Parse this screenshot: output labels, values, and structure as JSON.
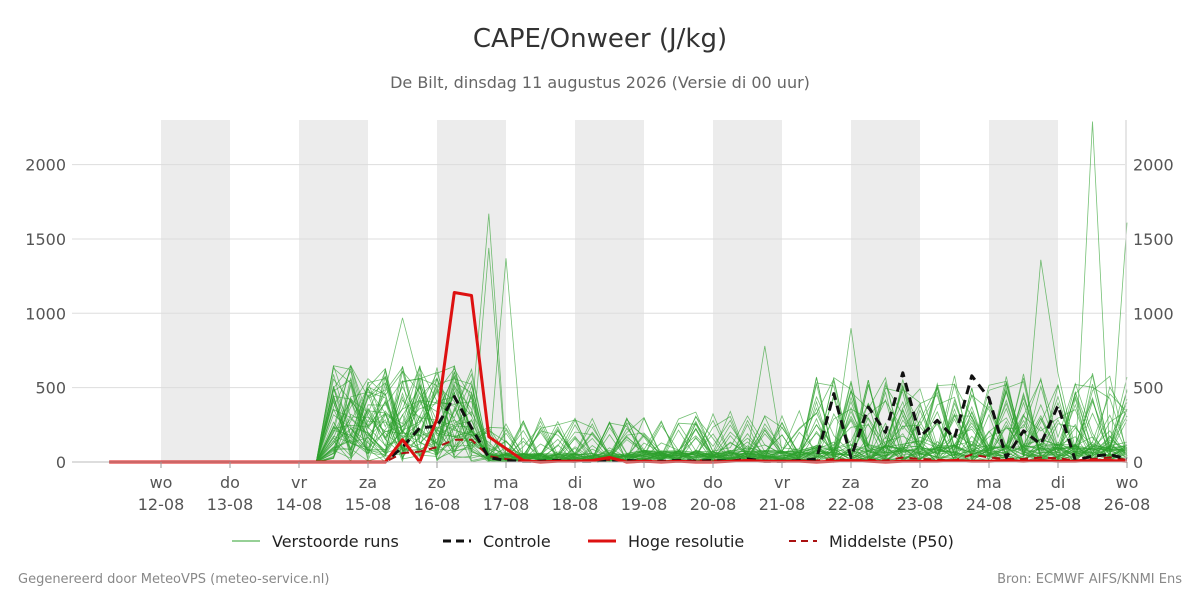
{
  "title": "CAPE/Onweer (J/kg)",
  "subtitle": "De Bilt, dinsdag 11 augustus 2026 (Versie di 00 uur)",
  "footer_left": "Gegenereerd door MeteoVPS (meteo-service.nl)",
  "footer_right": "Bron: ECMWF AIFS/KNMI Ens",
  "colors": {
    "ensemble": "#2ca02c",
    "control": "#111111",
    "hires": "#dd1111",
    "median": "#aa1111",
    "weekend_band": "#ececec",
    "grid": "#dddddd"
  },
  "chart_data": {
    "type": "line",
    "ylim": [
      0,
      2300
    ],
    "y_ticks": [
      "0",
      "500",
      "1000",
      "1500",
      "2000"
    ],
    "x_ticks": [
      {
        "day": "wo",
        "date": "12-08"
      },
      {
        "day": "do",
        "date": "13-08"
      },
      {
        "day": "vr",
        "date": "14-08"
      },
      {
        "day": "za",
        "date": "15-08"
      },
      {
        "day": "zo",
        "date": "16-08"
      },
      {
        "day": "ma",
        "date": "17-08"
      },
      {
        "day": "di",
        "date": "18-08"
      },
      {
        "day": "wo",
        "date": "19-08"
      },
      {
        "day": "do",
        "date": "20-08"
      },
      {
        "day": "vr",
        "date": "21-08"
      },
      {
        "day": "za",
        "date": "22-08"
      },
      {
        "day": "zo",
        "date": "23-08"
      },
      {
        "day": "ma",
        "date": "24-08"
      },
      {
        "day": "di",
        "date": "25-08"
      },
      {
        "day": "wo",
        "date": "26-08"
      }
    ],
    "x_start_day": -0.75,
    "x_end_day": 14,
    "shaded_days": [
      0,
      2,
      4,
      6,
      8,
      10,
      12
    ],
    "legend": [
      "Verstoorde runs",
      "Controle",
      "Hoge resolutie",
      "Middelste (P50)"
    ],
    "series": [
      {
        "name": "Hoge resolutie",
        "x": [
          -0.75,
          -0.5,
          -0.25,
          0,
          0.25,
          0.5,
          0.75,
          1,
          1.25,
          1.5,
          1.75,
          2,
          2.25,
          2.5,
          2.75,
          3,
          3.25,
          3.5,
          3.75,
          4,
          4.25,
          4.5,
          4.75,
          5,
          5.25,
          5.5,
          5.75,
          6,
          6.25,
          6.5,
          6.75,
          7,
          7.25,
          7.5,
          7.75,
          8,
          8.25,
          8.5,
          8.75,
          9,
          9.25,
          9.5,
          9.75,
          10,
          10.25,
          10.5,
          10.75,
          11,
          11.25,
          11.5,
          11.75,
          12,
          12.25,
          12.5,
          12.75,
          13,
          13.25,
          13.5,
          13.75,
          14
        ],
        "values": [
          0,
          0,
          0,
          0,
          0,
          0,
          0,
          0,
          0,
          0,
          0,
          0,
          0,
          0,
          0,
          0,
          0,
          150,
          0,
          290,
          1140,
          1120,
          170,
          90,
          10,
          0,
          5,
          5,
          10,
          30,
          0,
          5,
          0,
          5,
          0,
          0,
          5,
          10,
          5,
          5,
          5,
          0,
          5,
          10,
          5,
          0,
          5,
          5,
          5,
          10,
          5,
          5,
          10,
          5,
          10,
          5,
          5,
          10,
          10,
          5
        ]
      },
      {
        "name": "Controle",
        "x": [
          -0.75,
          -0.5,
          -0.25,
          0,
          0.25,
          0.5,
          0.75,
          1,
          1.25,
          1.5,
          1.75,
          2,
          2.25,
          2.5,
          2.75,
          3,
          3.25,
          3.5,
          3.75,
          4,
          4.25,
          4.5,
          4.75,
          5,
          5.25,
          5.5,
          5.75,
          6,
          6.25,
          6.5,
          6.75,
          7,
          7.25,
          7.5,
          7.75,
          8,
          8.25,
          8.5,
          8.75,
          9,
          9.25,
          9.5,
          9.75,
          10,
          10.25,
          10.5,
          10.75,
          11,
          11.25,
          11.5,
          11.75,
          12,
          12.25,
          12.5,
          12.75,
          13,
          13.25,
          13.5,
          13.75,
          14
        ],
        "values": [
          0,
          0,
          0,
          0,
          0,
          0,
          0,
          0,
          0,
          0,
          0,
          0,
          0,
          0,
          0,
          0,
          0,
          100,
          230,
          240,
          440,
          230,
          30,
          10,
          5,
          5,
          10,
          5,
          5,
          10,
          10,
          5,
          5,
          10,
          5,
          10,
          5,
          20,
          5,
          5,
          10,
          20,
          460,
          30,
          370,
          200,
          600,
          170,
          280,
          160,
          580,
          430,
          30,
          210,
          120,
          380,
          10,
          40,
          50,
          20
        ]
      },
      {
        "name": "Middelste (P50)",
        "x": [
          -0.75,
          -0.5,
          -0.25,
          0,
          0.25,
          0.5,
          0.75,
          1,
          1.25,
          1.5,
          1.75,
          2,
          2.25,
          2.5,
          2.75,
          3,
          3.25,
          3.5,
          3.75,
          4,
          4.25,
          4.5,
          4.75,
          5,
          5.25,
          5.5,
          5.75,
          6,
          6.25,
          6.5,
          6.75,
          7,
          7.25,
          7.5,
          7.75,
          8,
          8.25,
          8.5,
          8.75,
          9,
          9.25,
          9.5,
          9.75,
          10,
          10.25,
          10.5,
          10.75,
          11,
          11.25,
          11.5,
          11.75,
          12,
          12.25,
          12.5,
          12.75,
          13,
          13.25,
          13.5,
          13.75,
          14
        ],
        "values": [
          0,
          0,
          0,
          0,
          0,
          0,
          0,
          0,
          0,
          0,
          0,
          0,
          0,
          0,
          0,
          0,
          0,
          60,
          70,
          100,
          150,
          150,
          40,
          20,
          5,
          5,
          5,
          10,
          10,
          15,
          10,
          10,
          5,
          5,
          10,
          10,
          5,
          10,
          10,
          5,
          10,
          10,
          20,
          10,
          15,
          10,
          30,
          20,
          15,
          10,
          50,
          30,
          20,
          20,
          30,
          25,
          10,
          20,
          30,
          15
        ]
      }
    ],
    "ensemble_members": 50
  }
}
